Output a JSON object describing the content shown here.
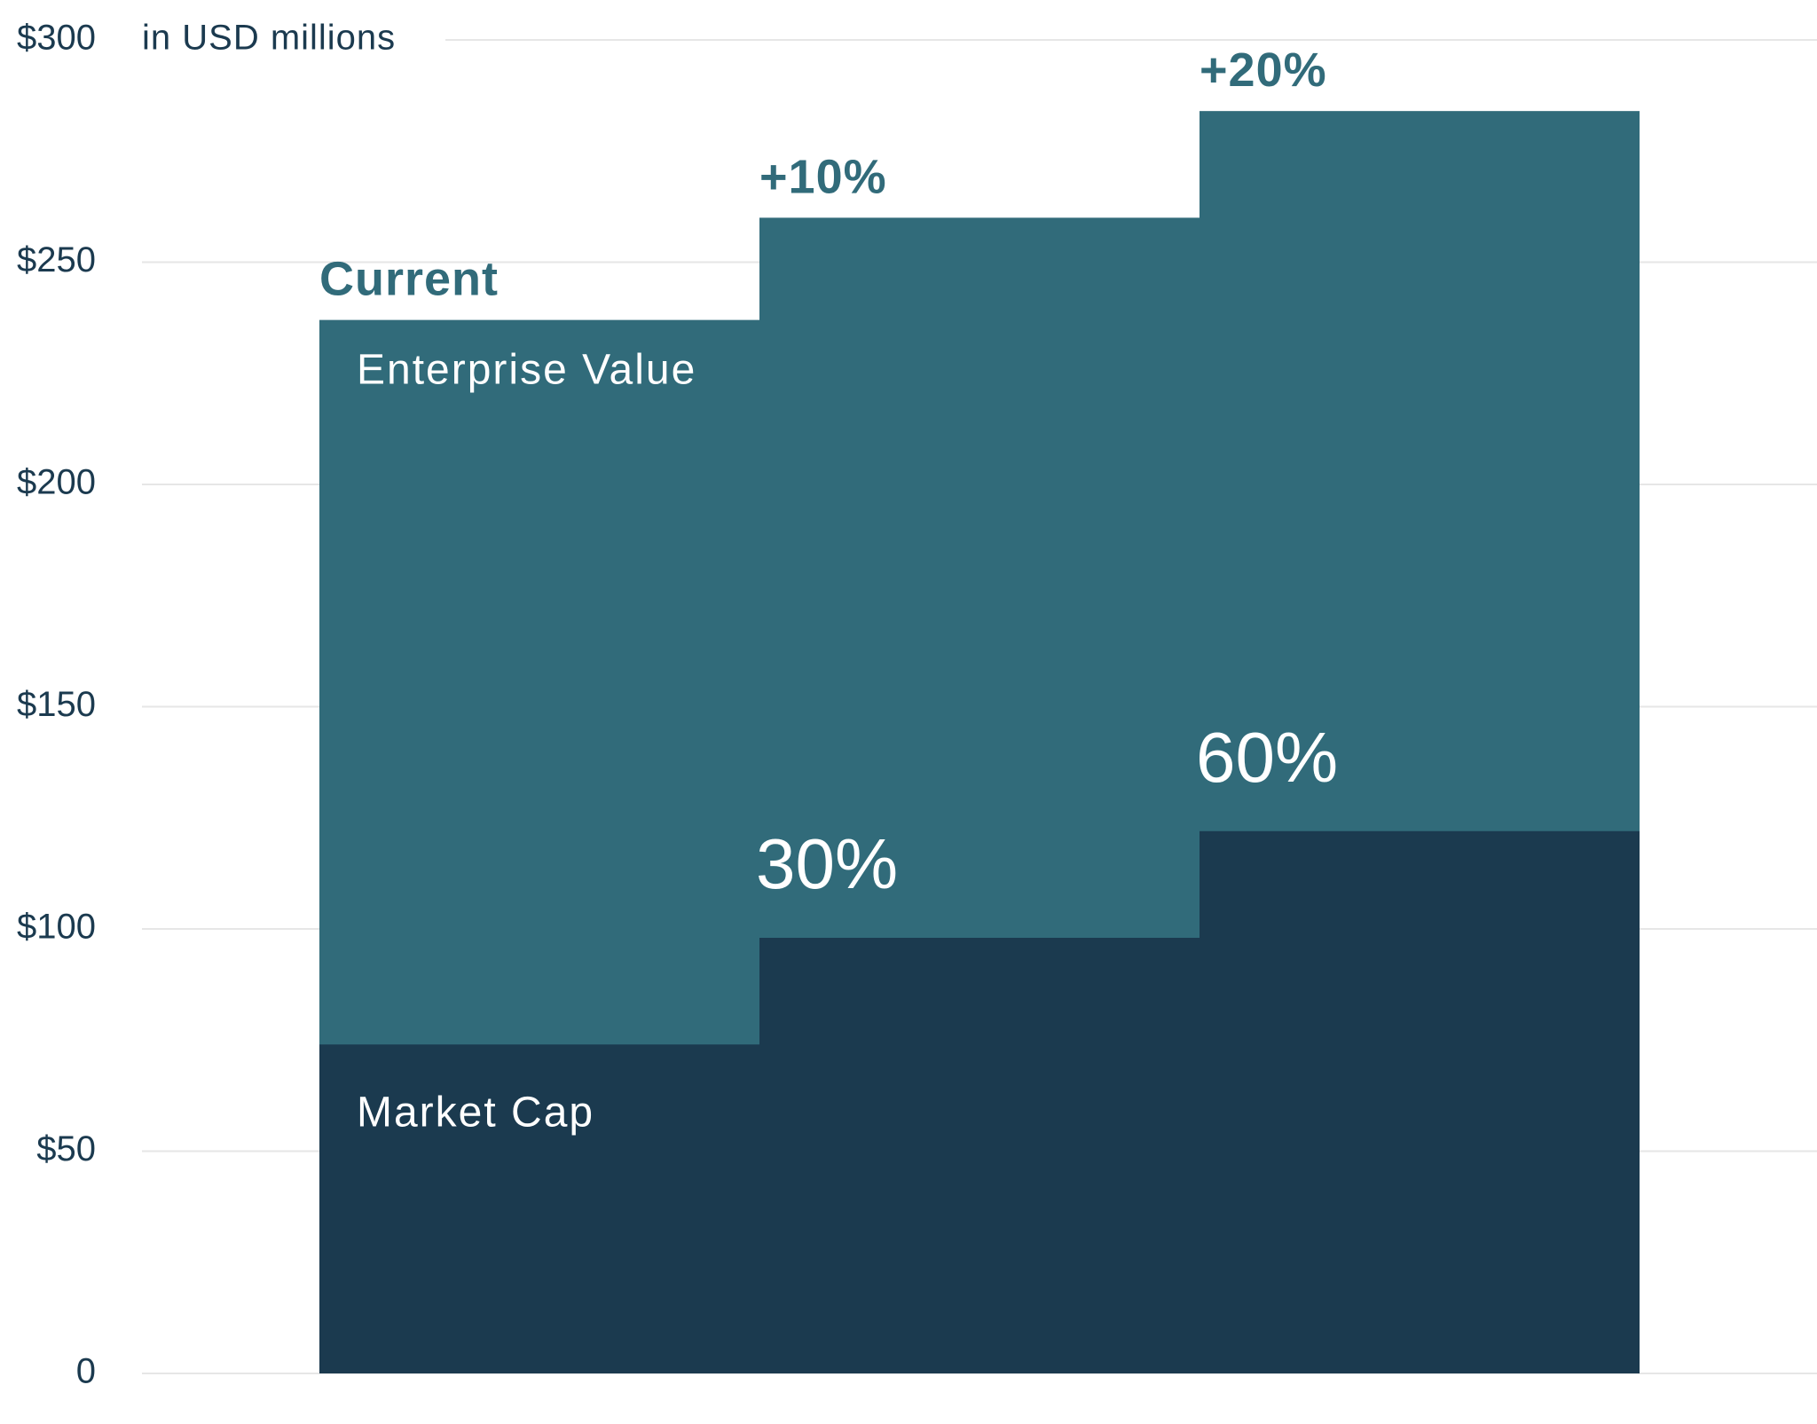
{
  "chart_data": {
    "type": "bar",
    "unit_label": "in USD millions",
    "categories": [
      "Current",
      "+10%",
      "+20%"
    ],
    "series": [
      {
        "name": "Market Cap",
        "values": [
          74,
          98,
          122
        ]
      },
      {
        "name": "Enterprise Value",
        "values": [
          237,
          260,
          284
        ]
      }
    ],
    "segment_labels": [
      "",
      "30%",
      "60%"
    ],
    "ylim": [
      0,
      300
    ],
    "yticks": [
      {
        "value": 0,
        "label": "0"
      },
      {
        "value": 50,
        "label": "$50"
      },
      {
        "value": 100,
        "label": "$100"
      },
      {
        "value": 150,
        "label": "$150"
      },
      {
        "value": 200,
        "label": "$200"
      },
      {
        "value": 250,
        "label": "$250"
      },
      {
        "value": 300,
        "label": "$300"
      }
    ],
    "grid": true,
    "colors": {
      "enterprise_value": "#316b7a",
      "market_cap": "#1b3a4f",
      "text_dark": "#1b3a4f",
      "grid": "#e6e6e6"
    }
  }
}
